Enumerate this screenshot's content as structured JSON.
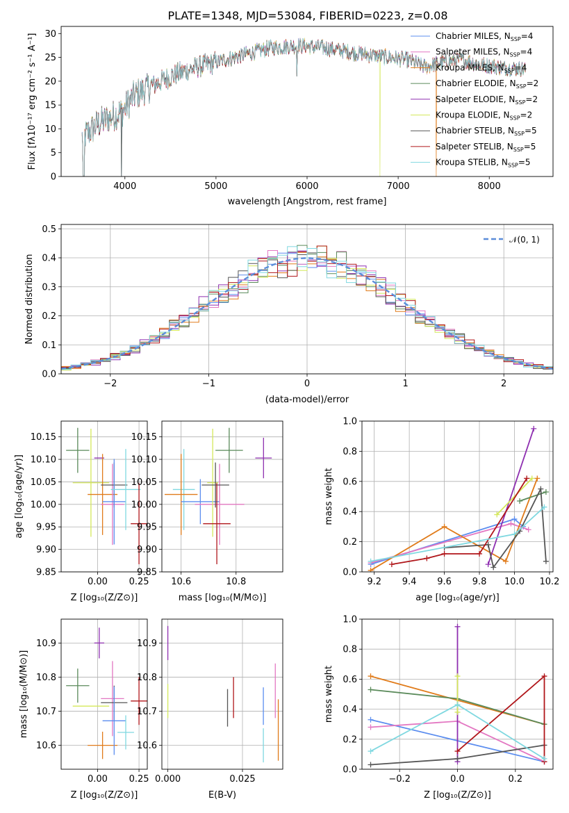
{
  "title": "PLATE=1348, MJD=53084, FIBERID=0223, z=0.08",
  "colors": {
    "chabrier_miles": "#5b8def",
    "salpeter_miles": "#e377c2",
    "kroupa_miles": "#e07b1a",
    "chabrier_elodie": "#5a8a5a",
    "salpeter_elodie": "#8e2fb0",
    "kroupa_elodie": "#d4e85a",
    "chabrier_stelib": "#555555",
    "salpeter_stelib": "#b0161a",
    "kroupa_stelib": "#7fd8e0"
  },
  "panels": {
    "spectrum": {
      "xlabel": "wavelength [Angstrom, rest frame]",
      "ylabel": "Flux [fλ10⁻¹⁷ erg cm⁻² s⁻¹ A⁻¹]",
      "legend": [
        {
          "key": "chabrier_miles",
          "label": "Chabrier MILES, N",
          "sub": "SSP",
          "suffix": "=4"
        },
        {
          "key": "salpeter_miles",
          "label": "Salpeter MILES, N",
          "sub": "SSP",
          "suffix": "=4"
        },
        {
          "key": "kroupa_miles",
          "label": "Kroupa MILES, N",
          "sub": "SSP",
          "suffix": "=4"
        },
        {
          "key": "chabrier_elodie",
          "label": "Chabrier ELODIE, N",
          "sub": "SSP",
          "suffix": "=2"
        },
        {
          "key": "salpeter_elodie",
          "label": "Salpeter ELODIE, N",
          "sub": "SSP",
          "suffix": "=2"
        },
        {
          "key": "kroupa_elodie",
          "label": "Kroupa ELODIE, N",
          "sub": "SSP",
          "suffix": "=2"
        },
        {
          "key": "chabrier_stelib",
          "label": "Chabrier STELIB, N",
          "sub": "SSP",
          "suffix": "=5"
        },
        {
          "key": "salpeter_stelib",
          "label": "Salpeter STELIB, N",
          "sub": "SSP",
          "suffix": "=5"
        },
        {
          "key": "kroupa_stelib",
          "label": "Kroupa STELIB, N",
          "sub": "SSP",
          "suffix": "=5"
        }
      ]
    },
    "hist": {
      "xlabel": "(data-model)/error",
      "ylabel": "Normed distribution",
      "legend_label": "𝒩(0, 1)"
    },
    "age_z": {
      "xlabel": "Z [log₁₀(Z/Z⊙)]",
      "ylabel": "age  [log₁₀(age/yr)]"
    },
    "age_mass": {
      "xlabel": "mass [log₁₀(M/M⊙)]"
    },
    "mw_age": {
      "xlabel": "age  [log₁₀(age/yr)]",
      "ylabel": "mass weight"
    },
    "mass_z": {
      "xlabel": "Z [log₁₀(Z/Z⊙)]",
      "ylabel": "mass [log₁₀(M/M⊙)]"
    },
    "mass_ebv": {
      "xlabel": "E(B-V)"
    },
    "mw_z": {
      "xlabel": "Z [log₁₀(Z/Z⊙)]",
      "ylabel": "mass weight"
    }
  },
  "chart_data": [
    {
      "id": "spectrum",
      "type": "line",
      "xlim": [
        3300,
        8700
      ],
      "ylim": [
        0,
        31.5
      ],
      "xticks": [
        4000,
        5000,
        6000,
        7000,
        8000
      ],
      "yticks": [
        0,
        5,
        10,
        15,
        20,
        25,
        30
      ],
      "grid": false,
      "x_range": [
        3530,
        8400
      ],
      "continuum_x": [
        3530,
        3700,
        3900,
        3990,
        4100,
        4300,
        4500,
        4800,
        5000,
        5300,
        5600,
        5900,
        6200,
        6500,
        6700,
        6900,
        7100,
        7300,
        7500,
        7700,
        7900,
        8100,
        8400
      ],
      "continuum_y": [
        8,
        11,
        13,
        14,
        17,
        19,
        21,
        23,
        24,
        25.5,
        27,
        27.5,
        27,
        26,
        25.5,
        25,
        24.5,
        23,
        24,
        24.5,
        23.5,
        23,
        22.5
      ],
      "features": [
        {
          "x": 3545,
          "y": 0
        },
        {
          "x": 3555,
          "y": 0
        },
        {
          "x": 3960,
          "y": 0
        },
        {
          "x": 6800,
          "y": 0
        },
        {
          "x": 7420,
          "y": 0
        },
        {
          "x": 5890,
          "y": 21
        }
      ]
    },
    {
      "id": "hist",
      "type": "step",
      "xlim": [
        -2.5,
        2.5
      ],
      "ylim": [
        0,
        0.515
      ],
      "xticks": [
        -2,
        -1,
        0,
        1,
        2
      ],
      "yticks": [
        0.0,
        0.1,
        0.2,
        0.3,
        0.4,
        0.5
      ],
      "grid": true,
      "legend_position": "top-right",
      "bin_width": 0.1,
      "reference": {
        "name": "N(0,1)",
        "mean": 0,
        "sigma": 1
      }
    },
    {
      "id": "age_z",
      "type": "errorbar",
      "xlim": [
        -0.22,
        0.3
      ],
      "ylim": [
        9.85,
        10.185
      ],
      "xticks": [
        0.0,
        0.25
      ],
      "yticks": [
        9.85,
        9.9,
        9.95,
        10.0,
        10.05,
        10.1,
        10.15
      ],
      "grid": true,
      "points": [
        {
          "s": "chabrier_elodie",
          "x": -0.12,
          "y": 10.12,
          "xe": 0.07,
          "ye": 0.05
        },
        {
          "s": "kroupa_elodie",
          "x": -0.04,
          "y": 10.048,
          "xe": 0.11,
          "ye": 0.12
        },
        {
          "s": "salpeter_elodie",
          "x": 0.01,
          "y": 10.103,
          "xe": 0.03,
          "ye": 0.0
        },
        {
          "s": "kroupa_miles",
          "x": 0.03,
          "y": 10.022,
          "xe": 0.09,
          "ye": 0.09
        },
        {
          "s": "salpeter_miles",
          "x": 0.09,
          "y": 10.0,
          "xe": 0.07,
          "ye": 0.09
        },
        {
          "s": "chabrier_stelib",
          "x": 0.1,
          "y": 10.043,
          "xe": 0.08,
          "ye": 0.05
        },
        {
          "s": "chabrier_miles",
          "x": 0.1,
          "y": 10.006,
          "xe": 0.07,
          "ye": 0.095
        },
        {
          "s": "kroupa_stelib",
          "x": 0.17,
          "y": 10.033,
          "xe": 0.09,
          "ye": 0.09
        },
        {
          "s": "salpeter_stelib",
          "x": 0.25,
          "y": 9.957,
          "xe": 0.05,
          "ye": 0.09
        }
      ]
    },
    {
      "id": "age_mass",
      "type": "errorbar",
      "xlim": [
        10.53,
        10.97
      ],
      "ylim": [
        9.85,
        10.185
      ],
      "xticks": [
        10.6,
        10.8
      ],
      "yticks": [
        9.85,
        9.9,
        9.95,
        10.0,
        10.05,
        10.1,
        10.15
      ],
      "grid": true,
      "points": [
        {
          "s": "kroupa_stelib",
          "x": 10.61,
          "y": 10.033,
          "xe": 0.04,
          "ye": 0.09
        },
        {
          "s": "kroupa_miles",
          "x": 10.6,
          "y": 10.022,
          "xe": 0.06,
          "ye": 0.09
        },
        {
          "s": "chabrier_miles",
          "x": 10.67,
          "y": 10.006,
          "xe": 0.07,
          "ye": 0.05
        },
        {
          "s": "salpeter_miles",
          "x": 10.74,
          "y": 10.0,
          "xe": 0.09,
          "ye": 0.09
        },
        {
          "s": "kroupa_elodie",
          "x": 10.715,
          "y": 10.048,
          "xe": 0.02,
          "ye": 0.12
        },
        {
          "s": "chabrier_stelib",
          "x": 10.725,
          "y": 10.043,
          "xe": 0.05,
          "ye": 0.05
        },
        {
          "s": "chabrier_elodie",
          "x": 10.775,
          "y": 10.12,
          "xe": 0.05,
          "ye": 0.05
        },
        {
          "s": "salpeter_stelib",
          "x": 10.73,
          "y": 9.957,
          "xe": 0.05,
          "ye": 0.09
        },
        {
          "s": "salpeter_elodie",
          "x": 10.9,
          "y": 10.103,
          "xe": 0.03,
          "ye": 0.045
        }
      ]
    },
    {
      "id": "mw_age",
      "type": "line",
      "xlim": [
        9.13,
        10.22
      ],
      "ylim": [
        0.0,
        1.0
      ],
      "xticks": [
        9.2,
        9.4,
        9.6,
        9.8,
        10.0,
        10.2
      ],
      "yticks": [
        0.0,
        0.2,
        0.4,
        0.6,
        0.8,
        1.0
      ],
      "grid": true,
      "series": [
        {
          "s": "chabrier_miles",
          "x": [
            9.18,
            10.0,
            10.05
          ],
          "y": [
            0.05,
            0.35,
            0.3
          ]
        },
        {
          "s": "salpeter_miles",
          "x": [
            9.18,
            9.98,
            10.08
          ],
          "y": [
            0.06,
            0.32,
            0.28
          ]
        },
        {
          "s": "kroupa_miles",
          "x": [
            9.18,
            9.6,
            9.95,
            10.13
          ],
          "y": [
            0.01,
            0.3,
            0.07,
            0.62
          ]
        },
        {
          "s": "chabrier_elodie",
          "x": [
            10.03,
            10.18
          ],
          "y": [
            0.47,
            0.53
          ]
        },
        {
          "s": "salpeter_elodie",
          "x": [
            9.85,
            10.11
          ],
          "y": [
            0.05,
            0.95
          ]
        },
        {
          "s": "kroupa_elodie",
          "x": [
            9.9,
            10.1
          ],
          "y": [
            0.38,
            0.62
          ]
        },
        {
          "s": "chabrier_stelib",
          "x": [
            9.6,
            9.85,
            9.88,
            10.03,
            10.15,
            10.18
          ],
          "y": [
            0.16,
            0.18,
            0.03,
            0.27,
            0.55,
            0.07
          ]
        },
        {
          "s": "salpeter_stelib",
          "x": [
            9.3,
            9.5,
            9.6,
            9.8,
            10.07
          ],
          "y": [
            0.05,
            0.09,
            0.12,
            0.12,
            0.62
          ]
        },
        {
          "s": "kroupa_stelib",
          "x": [
            9.18,
            10.0,
            10.17
          ],
          "y": [
            0.07,
            0.25,
            0.43
          ]
        }
      ]
    },
    {
      "id": "mass_z",
      "type": "errorbar",
      "xlim": [
        -0.22,
        0.3
      ],
      "ylim": [
        10.53,
        10.97
      ],
      "xticks": [
        0.0,
        0.25
      ],
      "yticks": [
        10.6,
        10.7,
        10.8,
        10.9
      ],
      "grid": true,
      "points": [
        {
          "s": "chabrier_elodie",
          "x": -0.12,
          "y": 10.775,
          "xe": 0.07,
          "ye": 0.05
        },
        {
          "s": "kroupa_elodie",
          "x": -0.04,
          "y": 10.715,
          "xe": 0.11,
          "ye": 0.0
        },
        {
          "s": "salpeter_elodie",
          "x": 0.01,
          "y": 10.9,
          "xe": 0.03,
          "ye": 0.045
        },
        {
          "s": "kroupa_miles",
          "x": 0.03,
          "y": 10.6,
          "xe": 0.09,
          "ye": 0.04
        },
        {
          "s": "salpeter_miles",
          "x": 0.09,
          "y": 10.737,
          "xe": 0.07,
          "ye": 0.11
        },
        {
          "s": "chabrier_stelib",
          "x": 0.1,
          "y": 10.725,
          "xe": 0.08,
          "ye": 0.05
        },
        {
          "s": "chabrier_miles",
          "x": 0.1,
          "y": 10.672,
          "xe": 0.07,
          "ye": 0.1
        },
        {
          "s": "kroupa_stelib",
          "x": 0.17,
          "y": 10.638,
          "xe": 0.05,
          "ye": 0.05
        },
        {
          "s": "salpeter_stelib",
          "x": 0.25,
          "y": 10.73,
          "xe": 0.05,
          "ye": 0.07
        }
      ]
    },
    {
      "id": "mass_ebv",
      "type": "errorbar",
      "xlim": [
        -0.002,
        0.0385
      ],
      "ylim": [
        10.53,
        10.97
      ],
      "xticks": [
        0.0,
        0.025
      ],
      "xticklabels": [
        "0.000",
        "0.025"
      ],
      "yticks": [
        10.6,
        10.7,
        10.8,
        10.9
      ],
      "grid": true,
      "points": [
        {
          "s": "salpeter_elodie",
          "x": 0.0,
          "y": 10.9,
          "xe": 0.0,
          "ye": 0.05
        },
        {
          "s": "kroupa_elodie",
          "x": 0.0,
          "y": 10.73,
          "xe": 0.0,
          "ye": 0.05
        },
        {
          "s": "chabrier_stelib",
          "x": 0.02,
          "y": 10.71,
          "xe": 0.0,
          "ye": 0.055
        },
        {
          "s": "salpeter_stelib",
          "x": 0.022,
          "y": 10.74,
          "xe": 0.0,
          "ye": 0.06
        },
        {
          "s": "chabrier_miles",
          "x": 0.032,
          "y": 10.715,
          "xe": 0.0,
          "ye": 0.055
        },
        {
          "s": "kroupa_stelib",
          "x": 0.032,
          "y": 10.6,
          "xe": 0.0,
          "ye": 0.05
        },
        {
          "s": "salpeter_miles",
          "x": 0.036,
          "y": 10.76,
          "xe": 0.0,
          "ye": 0.08
        },
        {
          "s": "kroupa_miles",
          "x": 0.037,
          "y": 10.645,
          "xe": 0.0,
          "ye": 0.09
        }
      ]
    },
    {
      "id": "mw_z",
      "type": "line",
      "xlim": [
        -0.33,
        0.33
      ],
      "ylim": [
        0.0,
        1.0
      ],
      "xticks": [
        -0.2,
        0.0,
        0.2
      ],
      "yticks": [
        0.0,
        0.2,
        0.4,
        0.6,
        0.8,
        1.0
      ],
      "grid": true,
      "series": [
        {
          "s": "chabrier_miles",
          "x": [
            -0.3,
            0.3
          ],
          "y": [
            0.33,
            0.05
          ]
        },
        {
          "s": "salpeter_miles",
          "x": [
            -0.3,
            0.0,
            0.3
          ],
          "y": [
            0.28,
            0.32,
            0.05
          ]
        },
        {
          "s": "kroupa_miles",
          "x": [
            -0.3,
            0.3
          ],
          "y": [
            0.62,
            0.3
          ]
        },
        {
          "s": "chabrier_elodie",
          "x": [
            -0.3,
            0.0,
            0.3
          ],
          "y": [
            0.53,
            0.47,
            0.3
          ]
        },
        {
          "s": "salpeter_elodie",
          "x": [
            0.0,
            0.0
          ],
          "y": [
            0.05,
            0.95
          ]
        },
        {
          "s": "kroupa_elodie",
          "x": [
            0.0,
            0.0
          ],
          "y": [
            0.38,
            0.62
          ]
        },
        {
          "s": "chabrier_stelib",
          "x": [
            -0.3,
            0.0,
            0.3
          ],
          "y": [
            0.03,
            0.07,
            0.16
          ]
        },
        {
          "s": "salpeter_stelib",
          "x": [
            0.0,
            0.3,
            0.3
          ],
          "y": [
            0.12,
            0.62,
            0.05
          ]
        },
        {
          "s": "kroupa_stelib",
          "x": [
            -0.3,
            0.0,
            0.3
          ],
          "y": [
            0.12,
            0.43,
            0.07
          ]
        }
      ]
    }
  ]
}
